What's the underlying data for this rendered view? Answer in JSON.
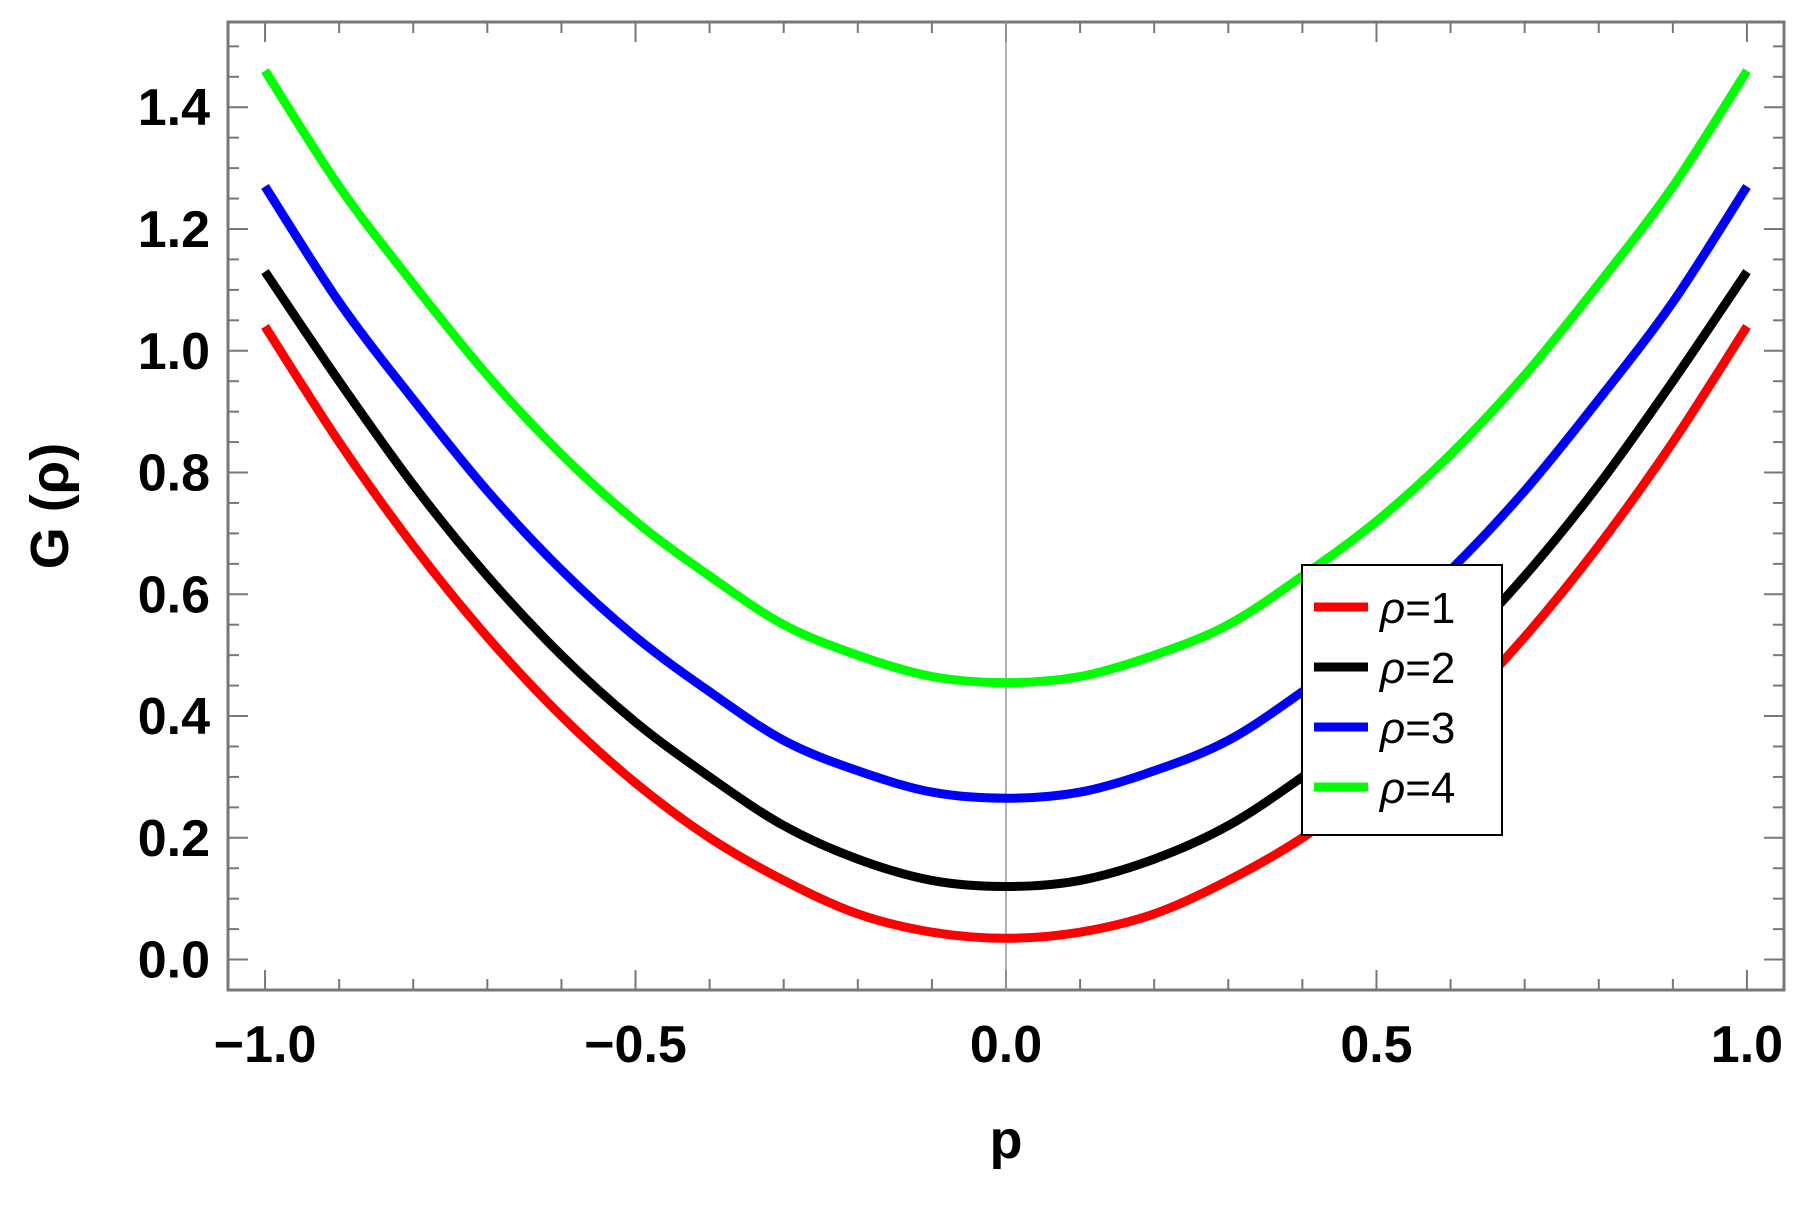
{
  "chart_data": {
    "type": "line",
    "title": "",
    "xlabel": "p",
    "ylabel": "G (ρ)",
    "xlim": [
      -1.05,
      1.05
    ],
    "ylim": [
      -0.05,
      1.54
    ],
    "x_ticks": [
      -1.0,
      -0.5,
      0.0,
      0.5,
      1.0
    ],
    "x_tick_labels": [
      "−1.0",
      "−0.5",
      "0.0",
      "0.5",
      "1.0"
    ],
    "y_ticks": [
      0.0,
      0.2,
      0.4,
      0.6,
      0.8,
      1.0,
      1.2,
      1.4
    ],
    "y_tick_labels": [
      "0.0",
      "0.2",
      "0.4",
      "0.6",
      "0.8",
      "1.0",
      "1.2",
      "1.4"
    ],
    "grid": false,
    "frame": true,
    "vertical_reference_line_at_x": 0,
    "legend": {
      "position": "center-right"
    },
    "x": [
      -1.0,
      -0.9,
      -0.8,
      -0.7,
      -0.6,
      -0.5,
      -0.4,
      -0.3,
      -0.2,
      -0.1,
      0.0,
      0.1,
      0.2,
      0.3,
      0.4,
      0.5,
      0.6,
      0.7,
      0.8,
      0.9,
      1.0
    ],
    "series": [
      {
        "name": "ρ=1",
        "label_symbol": "ρ",
        "label_rest": "=1",
        "color": "#ff0000",
        "values": [
          1.04,
          0.85,
          0.68,
          0.53,
          0.4,
          0.29,
          0.2,
          0.13,
          0.075,
          0.045,
          0.035,
          0.045,
          0.075,
          0.13,
          0.2,
          0.29,
          0.4,
          0.53,
          0.68,
          0.85,
          1.04
        ]
      },
      {
        "name": "ρ=2",
        "label_symbol": "ρ",
        "label_rest": "=2",
        "color": "#000000",
        "values": [
          1.13,
          0.95,
          0.78,
          0.63,
          0.5,
          0.39,
          0.3,
          0.22,
          0.165,
          0.13,
          0.12,
          0.13,
          0.165,
          0.22,
          0.3,
          0.39,
          0.5,
          0.63,
          0.78,
          0.95,
          1.13
        ]
      },
      {
        "name": "ρ=3",
        "label_symbol": "ρ",
        "label_rest": "=3",
        "color": "#0000ff",
        "values": [
          1.27,
          1.08,
          0.92,
          0.77,
          0.64,
          0.53,
          0.44,
          0.36,
          0.31,
          0.275,
          0.265,
          0.275,
          0.31,
          0.36,
          0.44,
          0.53,
          0.64,
          0.77,
          0.92,
          1.08,
          1.27
        ]
      },
      {
        "name": "ρ=4",
        "label_symbol": "ρ",
        "label_rest": "=4",
        "color": "#00ff00",
        "values": [
          1.46,
          1.27,
          1.11,
          0.96,
          0.83,
          0.72,
          0.63,
          0.55,
          0.5,
          0.465,
          0.455,
          0.465,
          0.5,
          0.55,
          0.63,
          0.72,
          0.83,
          0.96,
          1.11,
          1.27,
          1.46
        ]
      }
    ]
  }
}
